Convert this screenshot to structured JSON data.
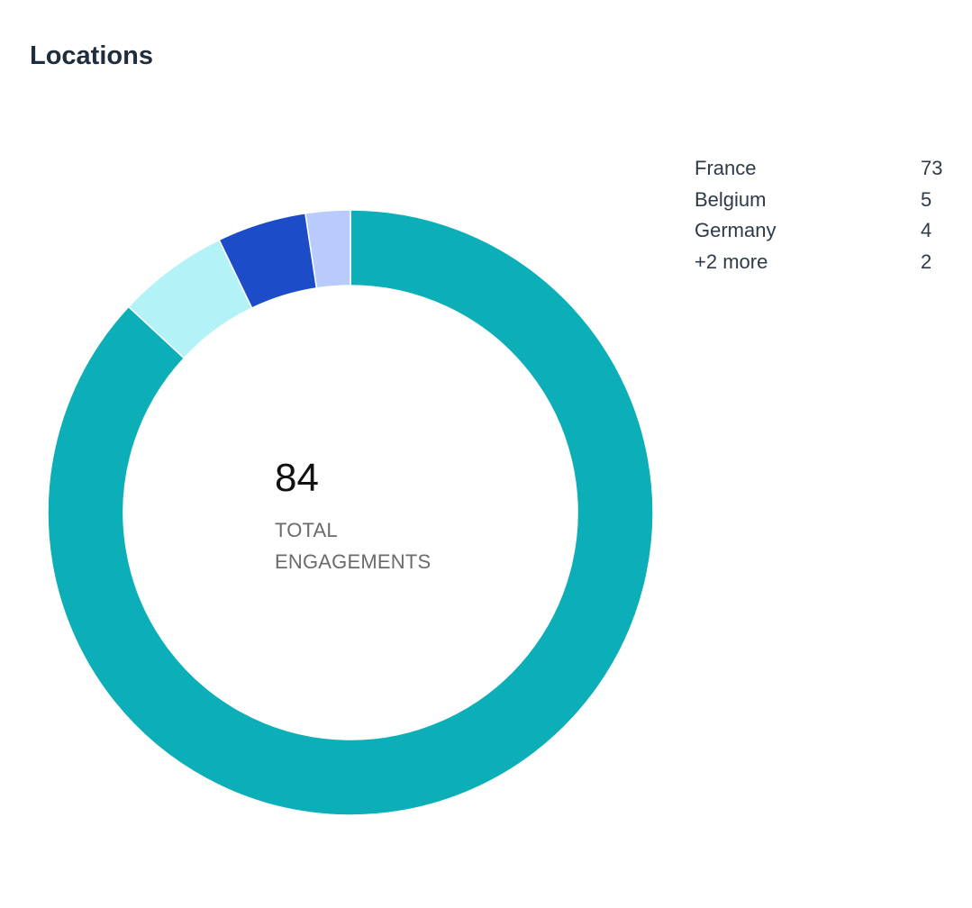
{
  "title": "Locations",
  "total": {
    "value": "84",
    "label": "TOTAL ENGAGEMENTS"
  },
  "legend": [
    {
      "label": "France",
      "value": "73"
    },
    {
      "label": "Belgium",
      "value": "5"
    },
    {
      "label": "Germany",
      "value": "4"
    },
    {
      "label": "+2 more",
      "value": "2"
    }
  ],
  "chart_data": {
    "type": "pie",
    "title": "Locations",
    "total": 84,
    "slices": [
      {
        "label": "France",
        "value": 73,
        "color": "#0caeb8"
      },
      {
        "label": "Belgium",
        "value": 5,
        "color": "#b3f3f8"
      },
      {
        "label": "Germany",
        "value": 4,
        "color": "#1d4cc9"
      },
      {
        "label": "+2 more",
        "value": 2,
        "color": "#b9cafd"
      }
    ],
    "legend_position": "top-right"
  }
}
